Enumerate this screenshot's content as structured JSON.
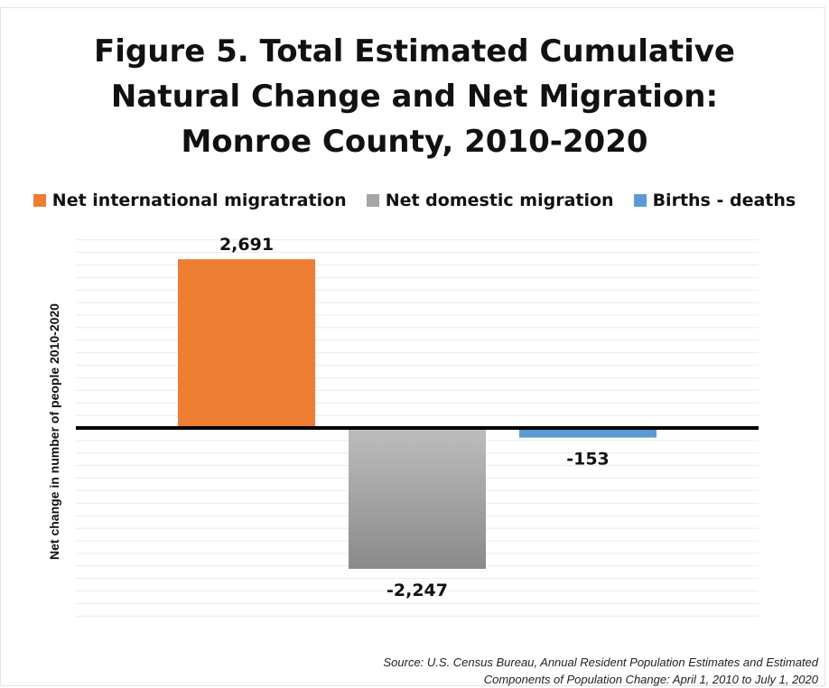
{
  "chart_data": {
    "type": "bar",
    "title_lines": [
      "Figure 5. Total Estimated Cumulative",
      "Natural Change and Net Migration:",
      "Monroe County, 2010-2020"
    ],
    "ylabel": "Net change in number of people 2010-2020",
    "xlabel": "",
    "ylim": [
      -3000,
      3000
    ],
    "grid": true,
    "legend_position": "top-center",
    "series": [
      {
        "name": "Net international migratration",
        "value": 2691,
        "label": "2,691",
        "color": "#ED7D31"
      },
      {
        "name": "Net domestic migration",
        "value": -2247,
        "label": "-2,247",
        "color": "#A5A5A5"
      },
      {
        "name": "Births  - deaths",
        "value": -153,
        "label": "-153",
        "color": "#5B9BD5"
      }
    ]
  },
  "source": {
    "line1": "Source: U.S. Census Bureau, Annual Resident Population Estimates and Estimated",
    "line2": "Components of Population Change: April 1, 2010 to July 1, 2020"
  }
}
